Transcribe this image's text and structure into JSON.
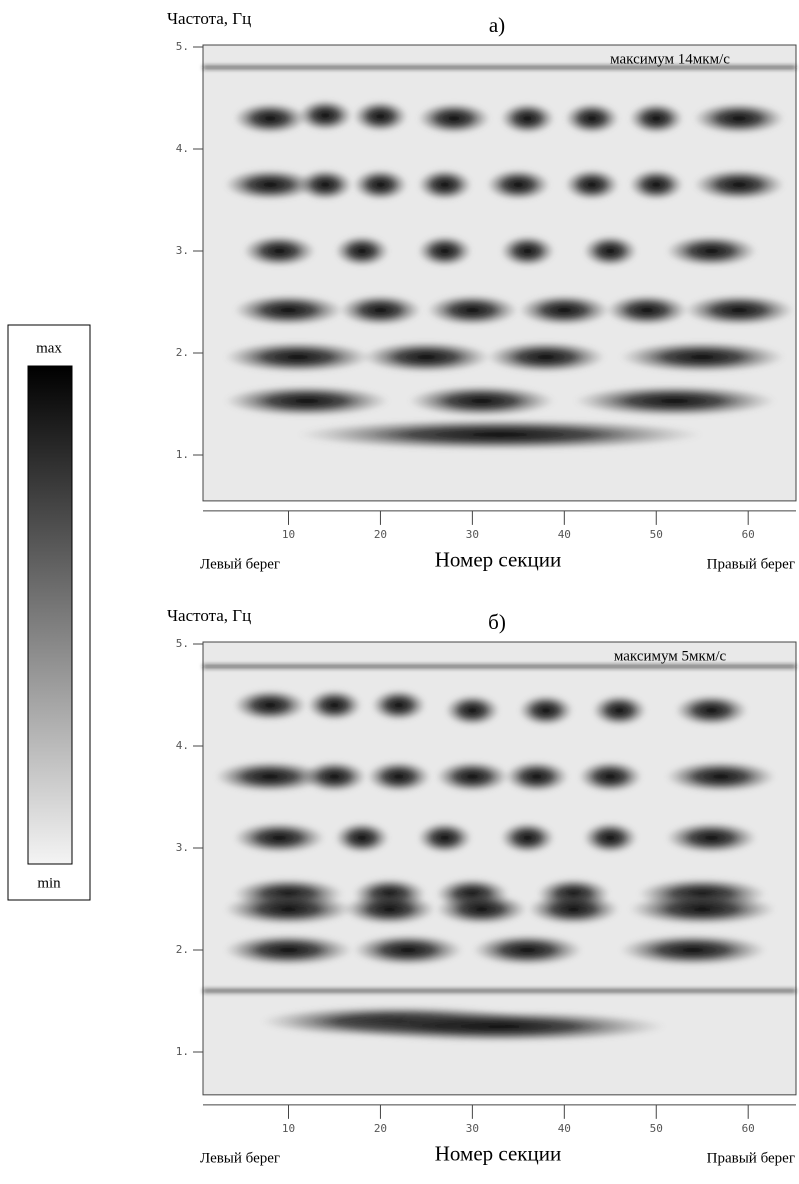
{
  "chart_data": [
    {
      "type": "heatmap",
      "title": "а)",
      "ylabel": "Частота, Гц",
      "xlabel": "Номер секции",
      "left_label": "Левый берег",
      "right_label": "Правый берег",
      "annotation": "максимум 14мкм/с",
      "xlim": [
        0.7,
        65.2
      ],
      "ylim": [
        0.55,
        5.0
      ],
      "xticks": [
        10,
        20,
        30,
        40,
        50,
        60
      ],
      "yticks": [
        {
          "value": 1,
          "label": "1."
        },
        {
          "value": 2,
          "label": "2."
        },
        {
          "value": 3,
          "label": "3."
        },
        {
          "value": 4,
          "label": "4."
        },
        {
          "value": 5,
          "label": "5."
        }
      ],
      "lines": [
        4.8
      ],
      "blobs": {
        "x": [
          8,
          14,
          20,
          28,
          36,
          43,
          50,
          59,
          8,
          14,
          20,
          27,
          35,
          43,
          50,
          59,
          9,
          18,
          27,
          36,
          45,
          56,
          10,
          20,
          30,
          40,
          49,
          59,
          11,
          25,
          38,
          55,
          12,
          31,
          52,
          33
        ],
        "y": [
          4.3,
          4.33,
          4.32,
          4.3,
          4.3,
          4.3,
          4.3,
          4.3,
          3.65,
          3.65,
          3.65,
          3.65,
          3.65,
          3.65,
          3.65,
          3.65,
          3.0,
          3.0,
          3.0,
          3.0,
          3.0,
          3.0,
          2.42,
          2.42,
          2.42,
          2.42,
          2.42,
          2.42,
          1.96,
          1.96,
          1.96,
          1.96,
          1.53,
          1.53,
          1.53,
          1.2
        ],
        "size": [
          8,
          6,
          6,
          8,
          6,
          6,
          6,
          10,
          10,
          6,
          6,
          6,
          7,
          6,
          6,
          10,
          8,
          6,
          6,
          6,
          6,
          10,
          12,
          9,
          10,
          10,
          9,
          12,
          16,
          14,
          13,
          18,
          18,
          16,
          22,
          44
        ]
      }
    },
    {
      "type": "heatmap",
      "title": "б)",
      "ylabel": "Частота, Гц",
      "xlabel": "Номер секции",
      "left_label": "Левый берег",
      "right_label": "Правый берег",
      "annotation": "максимум 5мкм/с",
      "xlim": [
        0.7,
        65.2
      ],
      "ylim": [
        0.58,
        5.0
      ],
      "xticks": [
        10,
        20,
        30,
        40,
        50,
        60
      ],
      "yticks": [
        {
          "value": 1,
          "label": "1."
        },
        {
          "value": 2,
          "label": "2."
        },
        {
          "value": 3,
          "label": "3."
        },
        {
          "value": 4,
          "label": "4."
        },
        {
          "value": 5,
          "label": "5."
        }
      ],
      "lines": [
        4.78,
        1.6
      ],
      "blobs": {
        "x": [
          8,
          15,
          22,
          30,
          38,
          46,
          56,
          8,
          15,
          22,
          30,
          37,
          45,
          57,
          9,
          18,
          27,
          36,
          45,
          56,
          10,
          21,
          30,
          41,
          55,
          10,
          21,
          31,
          41,
          55,
          10,
          23,
          36,
          54,
          22,
          33
        ],
        "y": [
          4.4,
          4.4,
          4.4,
          4.35,
          4.35,
          4.35,
          4.35,
          3.7,
          3.7,
          3.7,
          3.7,
          3.7,
          3.7,
          3.7,
          3.1,
          3.1,
          3.1,
          3.1,
          3.1,
          3.1,
          2.55,
          2.55,
          2.55,
          2.55,
          2.55,
          2.4,
          2.4,
          2.4,
          2.4,
          2.4,
          2.0,
          2.0,
          2.0,
          2.0,
          1.3,
          1.25
        ],
        "size": [
          8,
          6,
          6,
          6,
          6,
          6,
          8,
          12,
          7,
          7,
          8,
          7,
          7,
          12,
          10,
          6,
          6,
          6,
          6,
          10,
          12,
          8,
          8,
          8,
          14,
          14,
          10,
          10,
          10,
          16,
          14,
          12,
          12,
          16,
          30,
          36
        ]
      }
    }
  ],
  "colorbar": {
    "max": "max",
    "min": "min"
  }
}
